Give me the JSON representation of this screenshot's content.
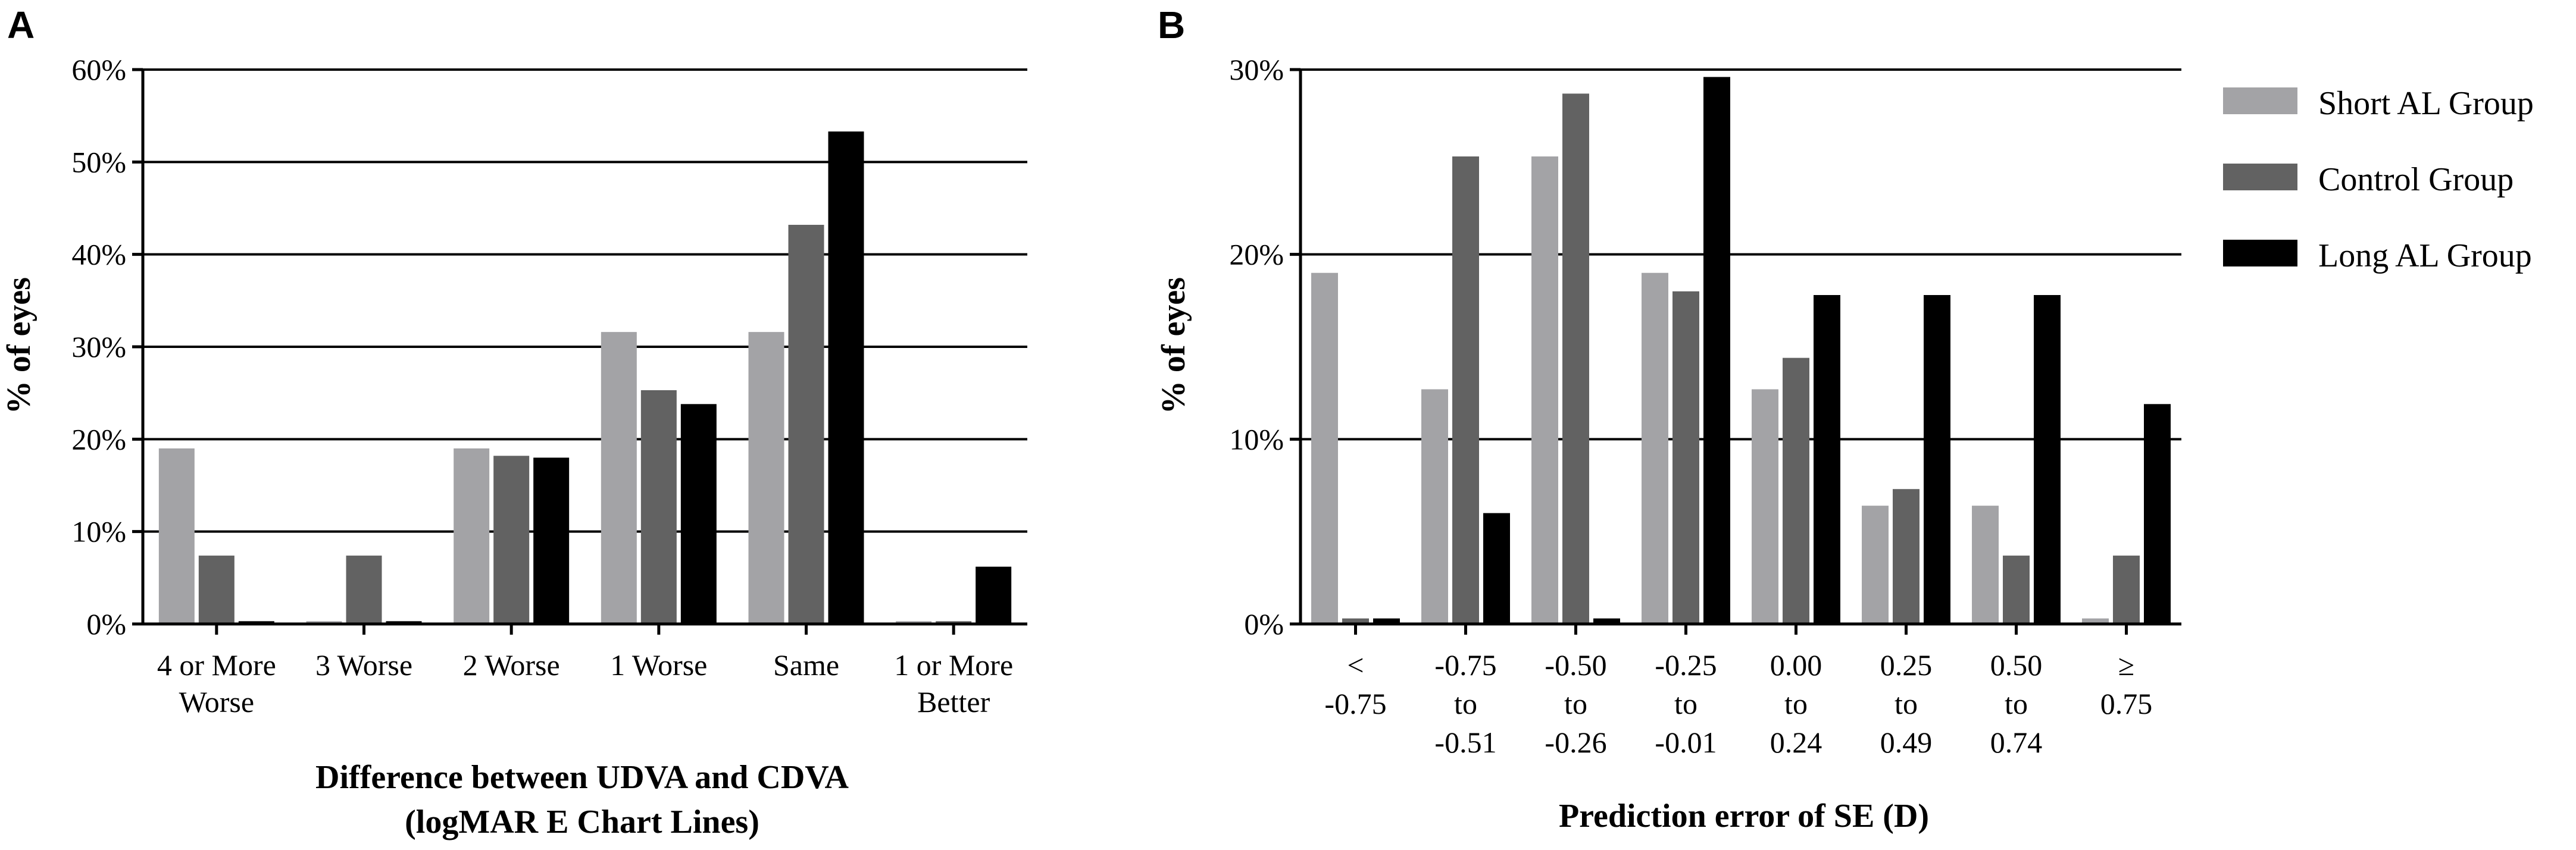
{
  "chart_data": [
    {
      "panel": "A",
      "type": "bar",
      "ylabel": "% of eyes",
      "xlabel_lines": [
        "Difference between UDVA and CDVA",
        "(logMAR E Chart Lines)"
      ],
      "ylim": [
        0,
        60
      ],
      "yticks": [
        "0%",
        "10%",
        "20%",
        "30%",
        "40%",
        "50%",
        "60%"
      ],
      "grid": true,
      "categories": [
        [
          "4 or More",
          "Worse"
        ],
        [
          "3 Worse"
        ],
        [
          "2 Worse"
        ],
        [
          "1 Worse"
        ],
        [
          "Same"
        ],
        [
          "1 or More",
          "Better"
        ]
      ],
      "series": [
        {
          "name": "Short AL Group",
          "values": [
            19.0,
            0.3,
            19.0,
            31.6,
            31.6,
            0.3
          ]
        },
        {
          "name": "Control Group",
          "values": [
            7.4,
            7.4,
            18.2,
            25.3,
            43.2,
            0.3
          ]
        },
        {
          "name": "Long AL Group",
          "values": [
            0.3,
            0.3,
            18.0,
            23.8,
            53.3,
            6.2
          ]
        }
      ]
    },
    {
      "panel": "B",
      "type": "bar",
      "ylabel": "% of eyes",
      "xlabel_lines": [
        "Prediction error of SE (D)"
      ],
      "ylim": [
        0,
        30
      ],
      "yticks": [
        "0%",
        "10%",
        "20%",
        "30%"
      ],
      "grid": true,
      "legend_position": "top-right",
      "categories": [
        [
          "<",
          "-0.75"
        ],
        [
          "-0.75",
          "to",
          "-0.51"
        ],
        [
          "-0.50",
          "to",
          "-0.26"
        ],
        [
          "-0.25",
          "to",
          "-0.01"
        ],
        [
          "0.00",
          "to",
          "0.24"
        ],
        [
          "0.25",
          "to",
          "0.49"
        ],
        [
          "0.50",
          "to",
          "0.74"
        ],
        [
          "≥",
          "0.75"
        ]
      ],
      "series": [
        {
          "name": "Short AL Group",
          "values": [
            19.0,
            12.7,
            25.3,
            19.0,
            12.7,
            6.4,
            6.4,
            0.3
          ]
        },
        {
          "name": "Control Group",
          "values": [
            0.3,
            25.3,
            28.7,
            18.0,
            14.4,
            7.3,
            3.7,
            3.7
          ]
        },
        {
          "name": "Long AL Group",
          "values": [
            0.3,
            6.0,
            0.3,
            29.6,
            17.8,
            17.8,
            17.8,
            11.9
          ]
        }
      ]
    }
  ],
  "legend": {
    "items": [
      {
        "label": "Short AL Group",
        "color": "#a3a3a6"
      },
      {
        "label": "Control Group",
        "color": "#626262"
      },
      {
        "label": "Long AL Group",
        "color": "#000000"
      }
    ]
  },
  "colors": [
    "#a3a3a6",
    "#626262",
    "#000000"
  ]
}
